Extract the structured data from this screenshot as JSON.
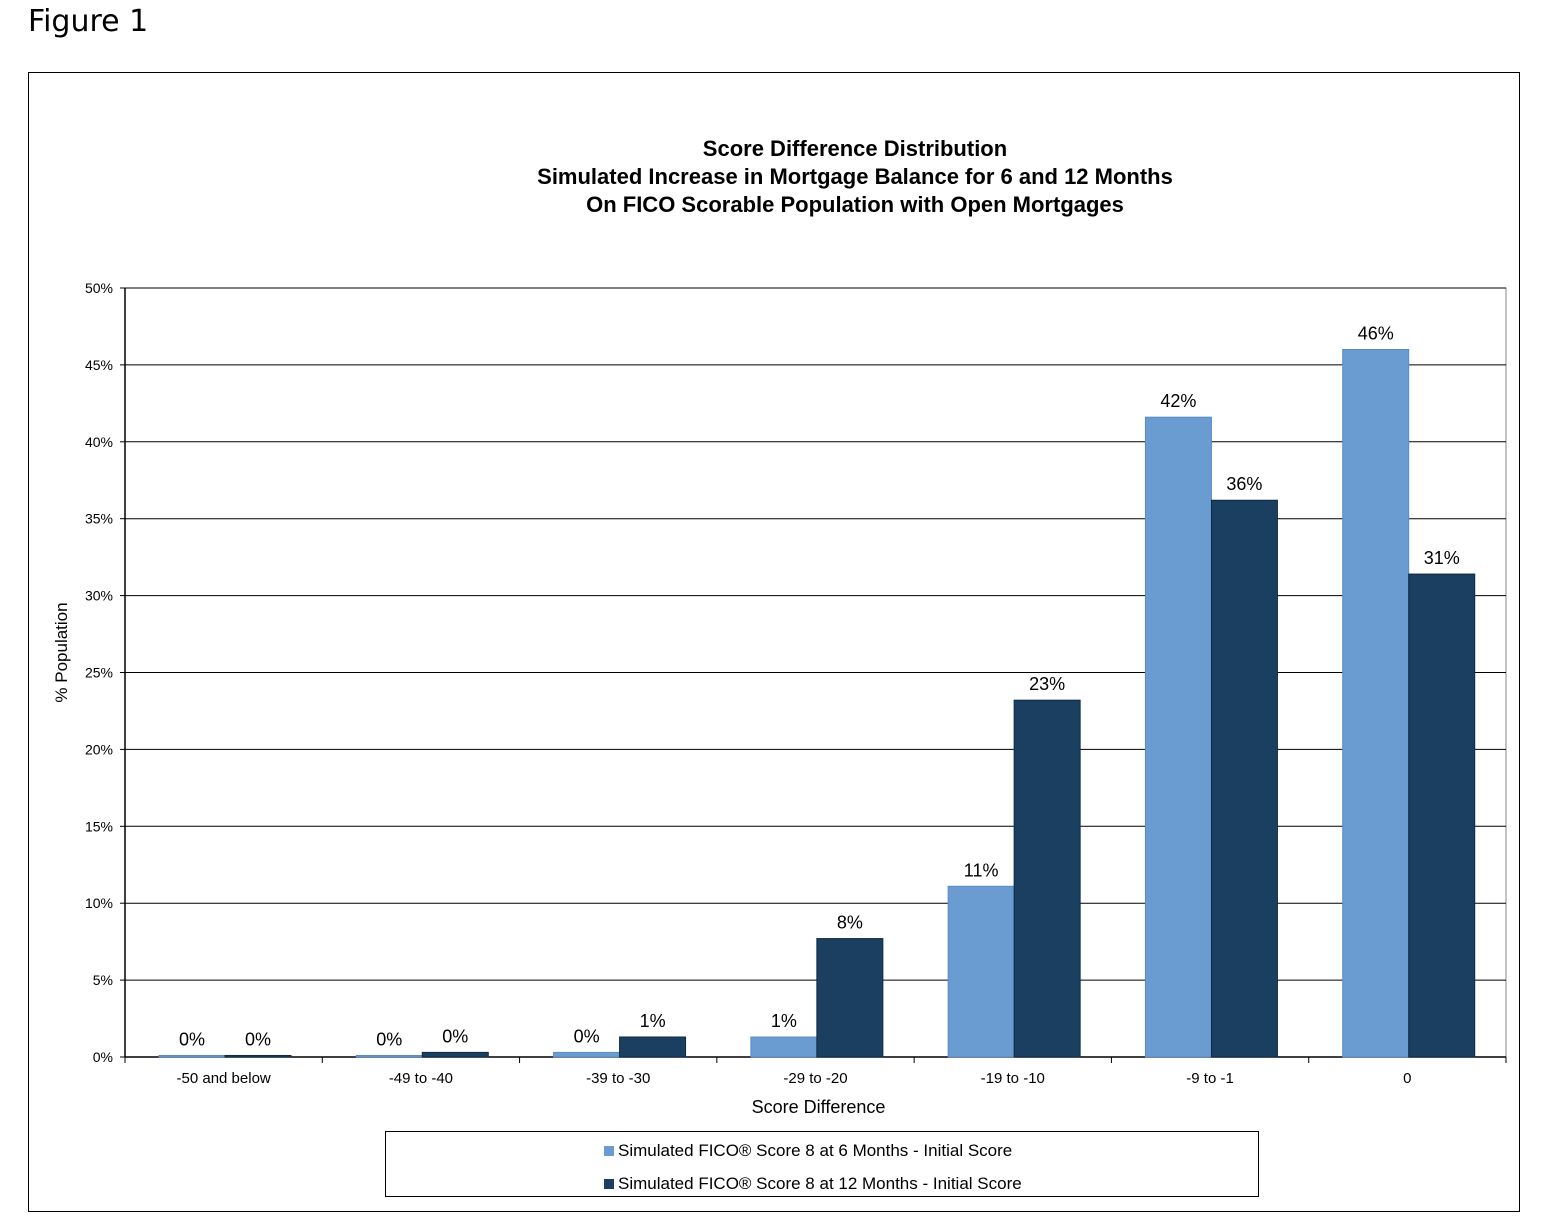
{
  "figure_label": "Figure 1",
  "chart_data": {
    "type": "bar",
    "title": [
      "Score Difference Distribution",
      "Simulated Increase in Mortgage Balance for 6 and 12 Months",
      "On FICO Scorable Population with Open Mortgages"
    ],
    "xlabel": "Score Difference",
    "ylabel": "% Population",
    "ylim": [
      0,
      50
    ],
    "yticks": [
      "0%",
      "5%",
      "10%",
      "15%",
      "20%",
      "25%",
      "30%",
      "35%",
      "40%",
      "45%",
      "50%"
    ],
    "grid": true,
    "legend_position": "bottom",
    "categories": [
      "-50 and below",
      "-49 to -40",
      "-39 to -30",
      "-29 to -20",
      "-19 to -10",
      "-9 to -1",
      "0"
    ],
    "series": [
      {
        "name": "Simulated FICO® Score 8 at 6 Months - Initial Score",
        "color": "#6a9bd1",
        "values": [
          0.1,
          0.1,
          0.3,
          1.3,
          11.1,
          41.6,
          46.0
        ],
        "labels": [
          "0%",
          "0%",
          "0%",
          "1%",
          "11%",
          "42%",
          "46%"
        ]
      },
      {
        "name": "Simulated FICO® Score 8 at 12 Months - Initial Score",
        "color": "#1b3f60",
        "values": [
          0.1,
          0.3,
          1.3,
          7.7,
          23.2,
          36.2,
          31.4
        ],
        "labels": [
          "0%",
          "0%",
          "1%",
          "8%",
          "23%",
          "36%",
          "31%"
        ]
      }
    ]
  }
}
